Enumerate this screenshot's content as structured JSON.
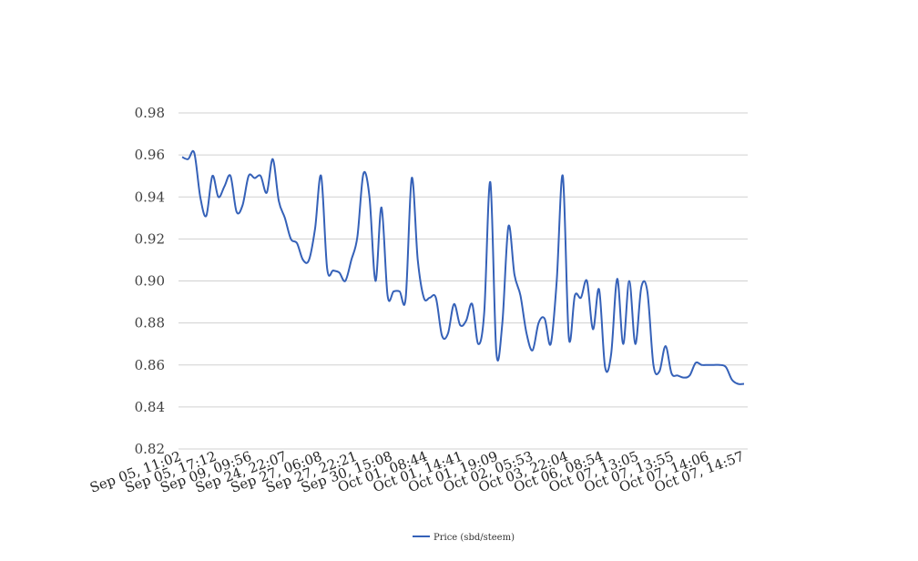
{
  "chart_data": {
    "type": "line",
    "title": "",
    "xlabel": "",
    "ylabel": "",
    "ylim": [
      0.82,
      0.98
    ],
    "yticks": [
      0.82,
      0.84,
      0.86,
      0.88,
      0.9,
      0.92,
      0.94,
      0.96,
      0.98
    ],
    "ytick_labels": [
      "0.82",
      "0.84",
      "0.86",
      "0.88",
      "0.90",
      "0.92",
      "0.94",
      "0.96",
      "0.98"
    ],
    "grid": true,
    "legend_position": "bottom",
    "categories_labels": [
      "Sep 05, 11:02",
      "Sep 05, 17:12",
      "Sep 09, 09:56",
      "Sep 24, 22:07",
      "Sep 27, 06:08",
      "Sep 27, 22:21",
      "Sep 30, 15:08",
      "Oct 01, 08:44",
      "Oct 01, 14:41",
      "Oct 01, 19:09",
      "Oct 02, 05:53",
      "Oct 03, 22:04",
      "Oct 06, 08:54",
      "Oct 07, 13:05",
      "Oct 07, 13:55",
      "Oct 07, 14:06",
      "Oct 07, 14:57"
    ],
    "series": [
      {
        "name": "Price (sbd/steem)",
        "color": "#3561b8",
        "values": [
          0.959,
          0.958,
          0.961,
          0.94,
          0.931,
          0.95,
          0.94,
          0.945,
          0.95,
          0.933,
          0.936,
          0.95,
          0.949,
          0.95,
          0.942,
          0.958,
          0.938,
          0.93,
          0.92,
          0.918,
          0.91,
          0.91,
          0.925,
          0.95,
          0.906,
          0.905,
          0.904,
          0.9,
          0.91,
          0.921,
          0.951,
          0.94,
          0.9,
          0.935,
          0.893,
          0.895,
          0.895,
          0.892,
          0.949,
          0.91,
          0.892,
          0.892,
          0.892,
          0.874,
          0.875,
          0.889,
          0.879,
          0.881,
          0.889,
          0.87,
          0.885,
          0.947,
          0.866,
          0.88,
          0.926,
          0.903,
          0.893,
          0.875,
          0.867,
          0.88,
          0.882,
          0.87,
          0.9,
          0.95,
          0.873,
          0.893,
          0.892,
          0.9,
          0.877,
          0.896,
          0.859,
          0.865,
          0.901,
          0.87,
          0.9,
          0.87,
          0.897,
          0.895,
          0.86,
          0.857,
          0.869,
          0.856,
          0.855,
          0.854,
          0.855,
          0.861,
          0.86,
          0.86,
          0.86,
          0.86,
          0.859,
          0.853,
          0.851,
          0.851
        ]
      }
    ]
  }
}
